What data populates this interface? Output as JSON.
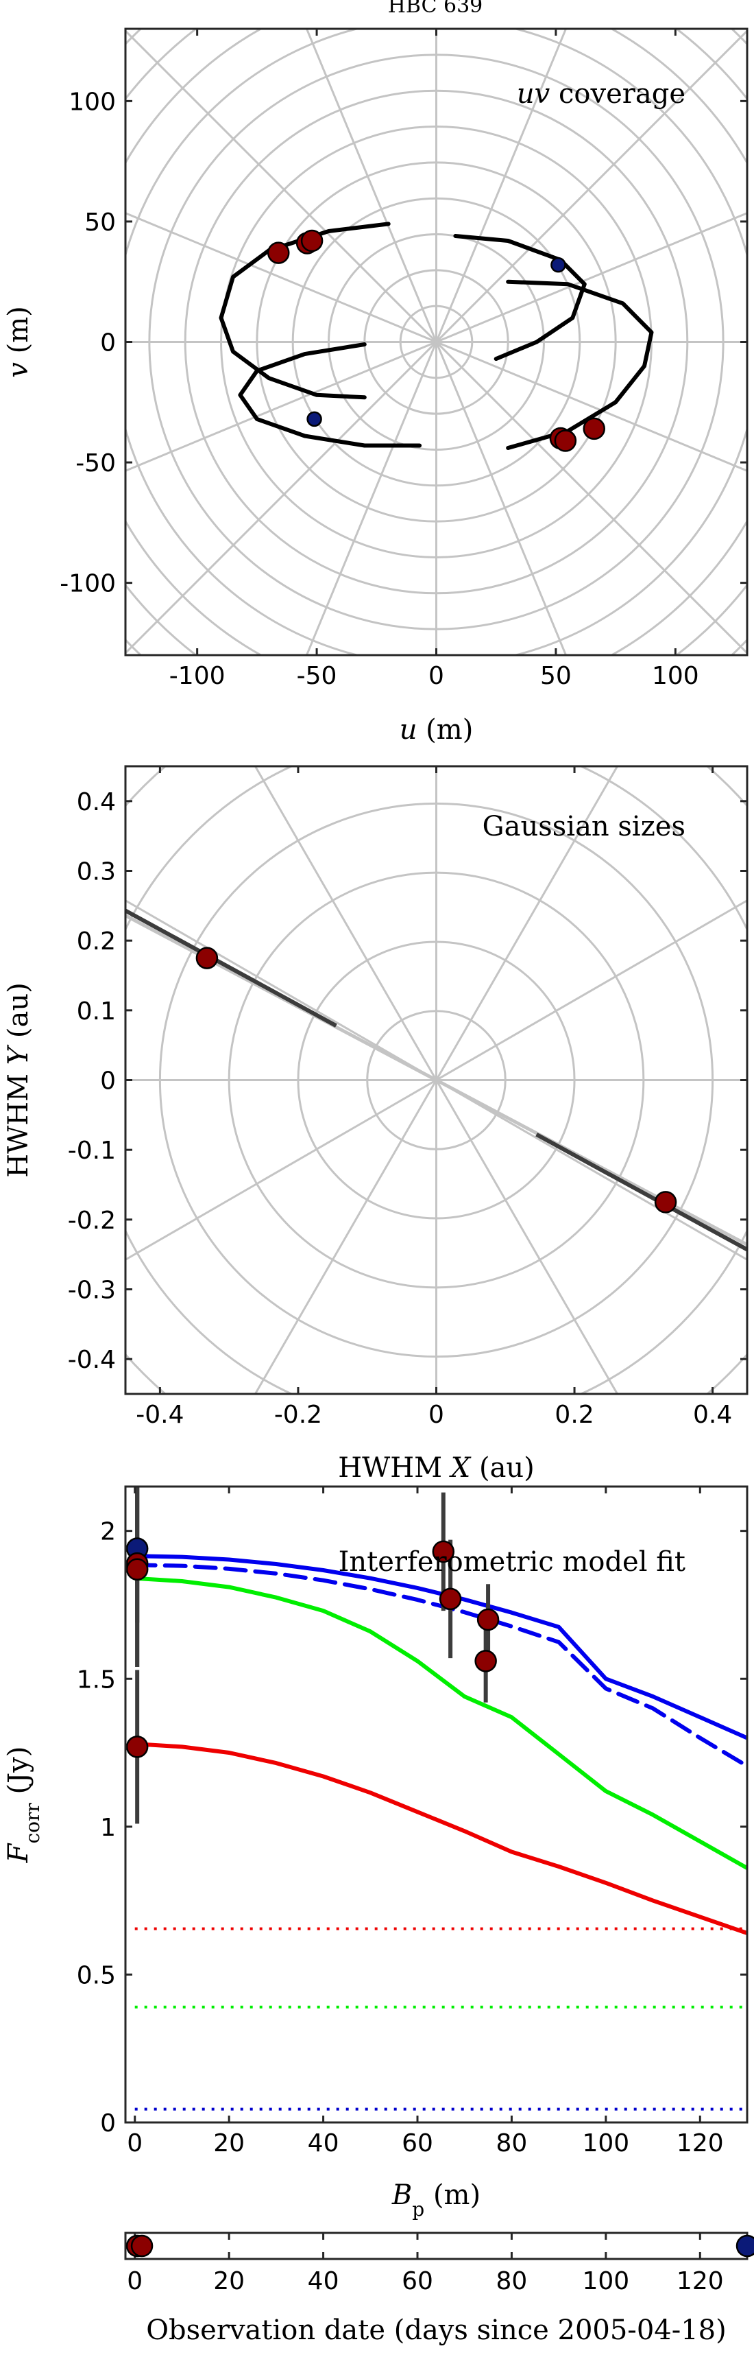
{
  "figure_title": "HBC 639",
  "chart_data": [
    {
      "type": "scatter",
      "panel": "uv",
      "annotation_italic": "uv",
      "annotation": " coverage",
      "xlabel_italic": "u",
      "xlabel": " (m)",
      "ylabel_italic": "v",
      "ylabel": " (m)",
      "xlim": [
        -130,
        130
      ],
      "ylim": [
        -130,
        130
      ],
      "xticks": [
        -100,
        -50,
        0,
        50,
        100
      ],
      "yticks": [
        -100,
        -50,
        0,
        50,
        100
      ],
      "polar_grid": true,
      "polar_radii": [
        15,
        30,
        45,
        60,
        75,
        90,
        105,
        120,
        135,
        150,
        165,
        180
      ],
      "polar_spoke_step_deg": 22.5,
      "tracks": [
        [
          [
            -20,
            49
          ],
          [
            -45,
            46
          ],
          [
            -70,
            38
          ],
          [
            -85,
            27
          ],
          [
            -90,
            10
          ],
          [
            -85,
            -4
          ],
          [
            -70,
            -15
          ],
          [
            -50,
            -22
          ],
          [
            -30,
            -23
          ]
        ],
        [
          [
            8,
            44
          ],
          [
            30,
            42
          ],
          [
            52,
            34
          ],
          [
            62,
            24
          ],
          [
            57,
            10
          ],
          [
            42,
            0
          ],
          [
            25,
            -7
          ]
        ],
        [
          [
            30,
            25
          ],
          [
            55,
            24
          ],
          [
            78,
            16
          ],
          [
            90,
            4
          ],
          [
            87,
            -10
          ],
          [
            75,
            -25
          ],
          [
            55,
            -37
          ],
          [
            30,
            -44
          ]
        ],
        [
          [
            -30,
            -1
          ],
          [
            -55,
            -5
          ],
          [
            -75,
            -12
          ],
          [
            -82,
            -22
          ],
          [
            -75,
            -32
          ],
          [
            -55,
            -39
          ],
          [
            -30,
            -43
          ],
          [
            -7,
            -43
          ]
        ]
      ],
      "red_points": [
        [
          -66,
          37
        ],
        [
          -54,
          41
        ],
        [
          -52,
          42
        ],
        [
          52,
          -40
        ],
        [
          54,
          -41
        ],
        [
          66,
          -36
        ]
      ],
      "blue_points": [
        [
          51,
          32
        ],
        [
          -51,
          -32
        ]
      ]
    },
    {
      "type": "scatter",
      "panel": "gauss",
      "annotation": "Gaussian sizes",
      "xlabel": "HWHM ",
      "xlabel_italic": "X",
      "xlabel_suffix": " (au)",
      "ylabel": "HWHM ",
      "ylabel_italic": "Y",
      "ylabel_suffix": " (au)",
      "xlim": [
        -0.45,
        0.45
      ],
      "ylim": [
        -0.45,
        0.45
      ],
      "xticks": [
        -0.4,
        -0.2,
        0,
        0.2,
        0.4
      ],
      "yticks": [
        -0.4,
        -0.3,
        -0.2,
        -0.1,
        0,
        0.1,
        0.2,
        0.3,
        0.4
      ],
      "xtick_labels": [
        "-0.4",
        "-0.2",
        "0",
        "0.2",
        "0.4"
      ],
      "ytick_labels": [
        "-0.4",
        "-0.3",
        "-0.2",
        "-0.1",
        "0",
        "0.1",
        "0.2",
        "0.3",
        "0.4"
      ],
      "polar_grid": true,
      "polar_radii": [
        0.1,
        0.2,
        0.3,
        0.4,
        0.5,
        0.6
      ],
      "polar_spoke_step_deg": 30,
      "guide_line": [
        [
          -0.45,
          0.236
        ],
        [
          0.45,
          -0.236
        ]
      ],
      "dark_segments": [
        [
          [
            -0.45,
            0.243
          ],
          [
            -0.145,
            0.078
          ]
        ],
        [
          [
            0.145,
            -0.078
          ],
          [
            0.45,
            -0.243
          ]
        ]
      ],
      "red_points": [
        [
          -0.332,
          0.175
        ],
        [
          0.332,
          -0.175
        ]
      ]
    },
    {
      "type": "line",
      "panel": "fit",
      "annotation": "Interferometric model fit",
      "xlabel_italic": "B",
      "xlabel_sub": "p",
      "xlabel": " (m)",
      "ylabel_italic": "F",
      "ylabel_sub": "corr",
      "ylabel": " (Jy)",
      "xlim": [
        -2,
        130
      ],
      "ylim": [
        0,
        2.15
      ],
      "xticks": [
        0,
        20,
        40,
        60,
        80,
        100,
        120
      ],
      "yticks": [
        0,
        0.5,
        1,
        1.5,
        2
      ],
      "ytick_labels": [
        "0",
        "0.5",
        "1",
        "1.5",
        "2"
      ],
      "series": [
        {
          "color": "#0000ee",
          "style": "solid",
          "points": [
            [
              0,
              1.915
            ],
            [
              10,
              1.912
            ],
            [
              20,
              1.903
            ],
            [
              30,
              1.888
            ],
            [
              40,
              1.867
            ],
            [
              50,
              1.84
            ],
            [
              60,
              1.807
            ],
            [
              70,
              1.768
            ],
            [
              80,
              1.724
            ],
            [
              90,
              1.675
            ],
            [
              100,
              1.5
            ],
            [
              110,
              1.44
            ],
            [
              120,
              1.37
            ],
            [
              130,
              1.3
            ]
          ]
        },
        {
          "color": "#0000ee",
          "style": "dashed",
          "points": [
            [
              0,
              1.885
            ],
            [
              10,
              1.882
            ],
            [
              20,
              1.872
            ],
            [
              30,
              1.856
            ],
            [
              40,
              1.833
            ],
            [
              50,
              1.803
            ],
            [
              60,
              1.767
            ],
            [
              70,
              1.725
            ],
            [
              80,
              1.677
            ],
            [
              90,
              1.624
            ],
            [
              100,
              1.467
            ],
            [
              110,
              1.4
            ],
            [
              120,
              1.3
            ],
            [
              130,
              1.205
            ]
          ]
        },
        {
          "color": "#00ee00",
          "style": "solid",
          "points": [
            [
              0,
              1.84
            ],
            [
              10,
              1.83
            ],
            [
              20,
              1.81
            ],
            [
              30,
              1.775
            ],
            [
              40,
              1.73
            ],
            [
              50,
              1.66
            ],
            [
              60,
              1.56
            ],
            [
              70,
              1.44
            ],
            [
              80,
              1.37
            ],
            [
              90,
              1.245
            ],
            [
              100,
              1.12
            ],
            [
              110,
              1.04
            ],
            [
              120,
              0.95
            ],
            [
              130,
              0.86
            ]
          ]
        },
        {
          "color": "#ee0000",
          "style": "solid",
          "points": [
            [
              0,
              1.28
            ],
            [
              10,
              1.27
            ],
            [
              20,
              1.25
            ],
            [
              30,
              1.215
            ],
            [
              40,
              1.17
            ],
            [
              50,
              1.115
            ],
            [
              60,
              1.05
            ],
            [
              70,
              0.985
            ],
            [
              80,
              0.915
            ],
            [
              90,
              0.865
            ],
            [
              100,
              0.81
            ],
            [
              110,
              0.75
            ],
            [
              120,
              0.695
            ],
            [
              130,
              0.64
            ]
          ]
        },
        {
          "color": "#ee0000",
          "style": "dotted",
          "points": [
            [
              0,
              0.655
            ],
            [
              130,
              0.655
            ]
          ]
        },
        {
          "color": "#00ee00",
          "style": "dotted",
          "points": [
            [
              0,
              0.39
            ],
            [
              130,
              0.39
            ]
          ]
        },
        {
          "color": "#0000cc",
          "style": "dotted",
          "points": [
            [
              0,
              0.045
            ],
            [
              130,
              0.045
            ]
          ]
        }
      ],
      "points": [
        {
          "x": 0.5,
          "y": 1.94,
          "err": 0.25,
          "color": "blue"
        },
        {
          "x": 0.5,
          "y": 1.89,
          "err": 0.35,
          "color": "red"
        },
        {
          "x": 0.5,
          "y": 1.87,
          "err": 0.33,
          "color": "red"
        },
        {
          "x": 0.5,
          "y": 1.27,
          "err": 0.26,
          "color": "red"
        },
        {
          "x": 65.5,
          "y": 1.93,
          "err": 0.2,
          "color": "red"
        },
        {
          "x": 67,
          "y": 1.77,
          "err": 0.2,
          "color": "red"
        },
        {
          "x": 75,
          "y": 1.7,
          "err": 0.12,
          "color": "red"
        },
        {
          "x": 74.5,
          "y": 1.56,
          "err": 0.14,
          "color": "red"
        }
      ]
    },
    {
      "type": "scatter",
      "panel": "dates",
      "xlabel": "Observation date (days since 2005-04-18)",
      "xlim": [
        -2,
        130
      ],
      "xticks": [
        0,
        20,
        40,
        60,
        80,
        100,
        120
      ],
      "red_points": [
        0.5,
        1.5
      ],
      "blue_points": [
        130
      ]
    }
  ]
}
